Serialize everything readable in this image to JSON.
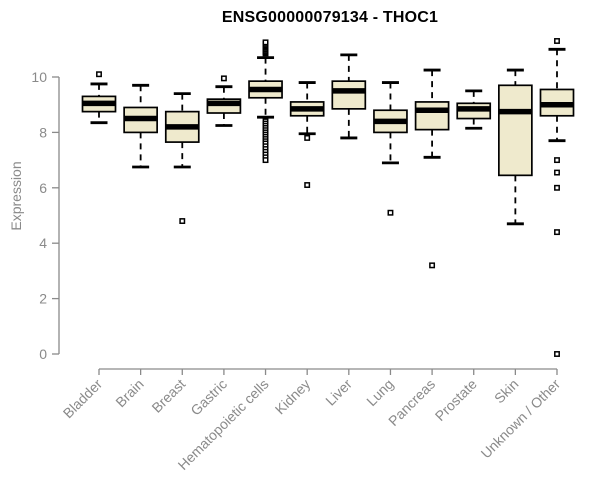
{
  "chart_data": {
    "type": "boxplot",
    "title": "ENSG00000079134 - THOC1",
    "ylabel": "Expression",
    "xlabel": "",
    "ylim": [
      0,
      11.3
    ],
    "yticks": [
      0,
      2,
      4,
      6,
      8,
      10
    ],
    "grid": false,
    "legend": false,
    "outlier_marker": "open-square",
    "whisker_style": "dashed",
    "categories": [
      "Bladder",
      "Brain",
      "Breast",
      "Gastric",
      "Hematopoietic cells",
      "Kidney",
      "Liver",
      "Lung",
      "Pancreas",
      "Prostate",
      "Skin",
      "Unknown / Other"
    ],
    "boxes": [
      {
        "category": "Bladder",
        "low": 8.35,
        "q1": 8.75,
        "median": 9.05,
        "q3": 9.3,
        "high": 9.75,
        "outliers": [
          10.1
        ]
      },
      {
        "category": "Brain",
        "low": 6.75,
        "q1": 8.0,
        "median": 8.5,
        "q3": 8.9,
        "high": 9.7,
        "outliers": []
      },
      {
        "category": "Breast",
        "low": 6.75,
        "q1": 7.65,
        "median": 8.2,
        "q3": 8.75,
        "high": 9.4,
        "outliers": [
          4.8
        ]
      },
      {
        "category": "Gastric",
        "low": 8.25,
        "q1": 8.7,
        "median": 9.05,
        "q3": 9.2,
        "high": 9.65,
        "outliers": [
          9.95
        ]
      },
      {
        "category": "Hematopoietic cells",
        "low": 8.55,
        "q1": 9.25,
        "median": 9.55,
        "q3": 9.85,
        "high": 10.7,
        "outliers": [
          10.85,
          10.9,
          10.95,
          11.0,
          11.05,
          11.1,
          11.15,
          11.2,
          11.25,
          8.4,
          8.32,
          8.24,
          8.16,
          8.08,
          8.0,
          7.92,
          7.84,
          7.76,
          7.68,
          7.6,
          7.5,
          7.4,
          7.3,
          7.2,
          7.1,
          7.0
        ]
      },
      {
        "category": "Kidney",
        "low": 7.95,
        "q1": 8.6,
        "median": 8.85,
        "q3": 9.1,
        "high": 9.8,
        "outliers": [
          7.8,
          6.1
        ]
      },
      {
        "category": "Liver",
        "low": 7.8,
        "q1": 8.85,
        "median": 9.5,
        "q3": 9.85,
        "high": 10.8,
        "outliers": []
      },
      {
        "category": "Lung",
        "low": 6.9,
        "q1": 8.0,
        "median": 8.4,
        "q3": 8.8,
        "high": 9.8,
        "outliers": [
          5.1
        ]
      },
      {
        "category": "Pancreas",
        "low": 7.1,
        "q1": 8.1,
        "median": 8.8,
        "q3": 9.1,
        "high": 10.25,
        "outliers": [
          3.2
        ]
      },
      {
        "category": "Prostate",
        "low": 8.15,
        "q1": 8.5,
        "median": 8.85,
        "q3": 9.05,
        "high": 9.5,
        "outliers": []
      },
      {
        "category": "Skin",
        "low": 4.7,
        "q1": 6.45,
        "median": 8.75,
        "q3": 9.7,
        "high": 10.25,
        "outliers": []
      },
      {
        "category": "Unknown / Other",
        "low": 7.7,
        "q1": 8.6,
        "median": 9.0,
        "q3": 9.55,
        "high": 11.0,
        "outliers": [
          11.3,
          7.0,
          6.55,
          6.0,
          4.4,
          0.0
        ]
      }
    ],
    "colors": {
      "box_fill": "#EFEACD",
      "box_border": "#000000",
      "median": "#000000",
      "whisker": "#000000",
      "outlier": "#000000",
      "axis": "#8a8a8a",
      "title": "#000000",
      "background": "#ffffff"
    }
  }
}
